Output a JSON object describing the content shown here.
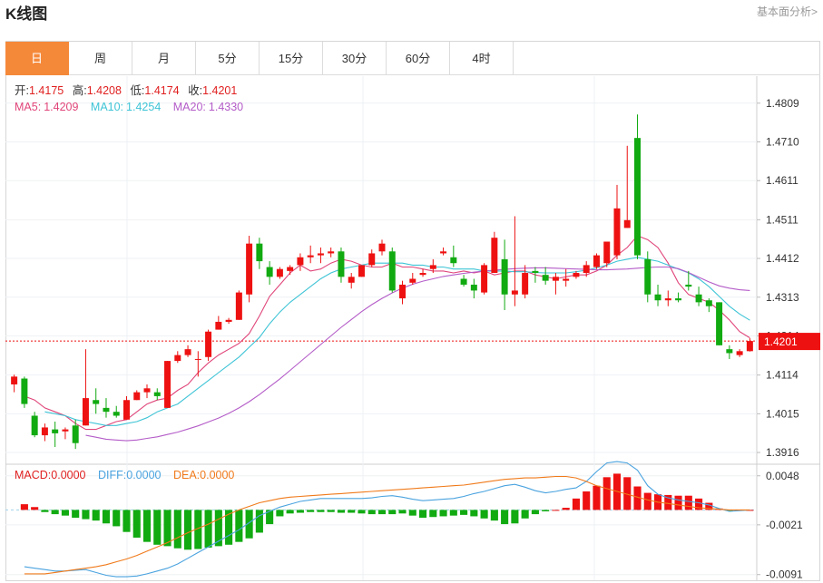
{
  "header": {
    "title": "K线图",
    "link": "基本面分析>"
  },
  "tabs": [
    {
      "label": "日",
      "active": true
    },
    {
      "label": "周",
      "active": false
    },
    {
      "label": "月",
      "active": false
    },
    {
      "label": "5分",
      "active": false
    },
    {
      "label": "15分",
      "active": false
    },
    {
      "label": "30分",
      "active": false
    },
    {
      "label": "60分",
      "active": false
    },
    {
      "label": "4时",
      "active": false
    }
  ],
  "ohlc_legend": {
    "open_label": "开:",
    "open": "1.4175",
    "high_label": "高:",
    "high": "1.4208",
    "low_label": "低:",
    "low": "1.4174",
    "close_label": "收:",
    "close": "1.4201"
  },
  "ma_legend": {
    "ma5_label": "MA5:",
    "ma5": "1.4209",
    "ma10_label": "MA10:",
    "ma10": "1.4254",
    "ma20_label": "MA20:",
    "ma20": "1.4330"
  },
  "macd_legend": {
    "macd_label": "MACD:",
    "macd": "0.0000",
    "diff_label": "DIFF:",
    "diff": "0.0000",
    "dea_label": "DEA:",
    "dea": "0.0000"
  },
  "colors": {
    "up": "#ee1111",
    "down": "#11aa11",
    "ma5": "#e0457a",
    "ma10": "#3ec4d6",
    "ma20": "#b45cc8",
    "diff": "#4aa3df",
    "dea": "#f07a1a",
    "accent": "#f5893a"
  },
  "chart_data": [
    {
      "type": "candlestick",
      "y_ticks": [
        "1.4809",
        "1.4710",
        "1.4611",
        "1.4511",
        "1.4412",
        "1.4313",
        "1.4214",
        "1.4114",
        "1.4015",
        "1.3916"
      ],
      "ylim": [
        1.3886,
        1.4878
      ],
      "current_price": "1.4201",
      "candles": [
        [
          1.409,
          1.4115,
          1.407,
          1.411
        ],
        [
          1.4105,
          1.411,
          1.403,
          1.404
        ],
        [
          1.401,
          1.402,
          1.3955,
          1.396
        ],
        [
          1.396,
          1.399,
          1.3945,
          1.398
        ],
        [
          1.3975,
          1.3995,
          1.393,
          1.3965
        ],
        [
          1.397,
          1.398,
          1.395,
          1.3975
        ],
        [
          1.3985,
          1.4,
          1.3925,
          1.394
        ],
        [
          1.3985,
          1.418,
          1.3985,
          1.4055
        ],
        [
          1.405,
          1.408,
          1.4015,
          1.404
        ],
        [
          1.403,
          1.4055,
          1.4005,
          1.402
        ],
        [
          1.402,
          1.4035,
          1.4005,
          1.401
        ],
        [
          1.4,
          1.406,
          1.4,
          1.405
        ],
        [
          1.405,
          1.4075,
          1.405,
          1.407
        ],
        [
          1.407,
          1.409,
          1.4055,
          1.408
        ],
        [
          1.407,
          1.408,
          1.405,
          1.406
        ],
        [
          1.403,
          1.415,
          1.403,
          1.415
        ],
        [
          1.415,
          1.4175,
          1.4145,
          1.4165
        ],
        [
          1.4165,
          1.419,
          1.416,
          1.418
        ],
        [
          1.4155,
          1.4175,
          1.411,
          1.4155
        ],
        [
          1.416,
          1.423,
          1.415,
          1.4225
        ],
        [
          1.423,
          1.4265,
          1.423,
          1.425
        ],
        [
          1.425,
          1.426,
          1.4245,
          1.4255
        ],
        [
          1.4255,
          1.433,
          1.4255,
          1.4325
        ],
        [
          1.432,
          1.447,
          1.43,
          1.445
        ],
        [
          1.445,
          1.4465,
          1.4385,
          1.4405
        ],
        [
          1.439,
          1.4405,
          1.4345,
          1.4365
        ],
        [
          1.4365,
          1.439,
          1.436,
          1.4385
        ],
        [
          1.438,
          1.4395,
          1.437,
          1.439
        ],
        [
          1.4395,
          1.4425,
          1.438,
          1.4415
        ],
        [
          1.4415,
          1.4445,
          1.44,
          1.442
        ],
        [
          1.442,
          1.444,
          1.44,
          1.4425
        ],
        [
          1.4425,
          1.444,
          1.4415,
          1.443
        ],
        [
          1.443,
          1.444,
          1.435,
          1.4365
        ],
        [
          1.435,
          1.4375,
          1.4335,
          1.4365
        ],
        [
          1.4365,
          1.4395,
          1.4365,
          1.4395
        ],
        [
          1.4395,
          1.4435,
          1.439,
          1.4425
        ],
        [
          1.443,
          1.446,
          1.442,
          1.445
        ],
        [
          1.443,
          1.444,
          1.4325,
          1.433
        ],
        [
          1.431,
          1.4355,
          1.4295,
          1.4345
        ],
        [
          1.435,
          1.4375,
          1.4345,
          1.436
        ],
        [
          1.437,
          1.4385,
          1.4365,
          1.4375
        ],
        [
          1.4385,
          1.441,
          1.4375,
          1.4395
        ],
        [
          1.4425,
          1.444,
          1.442,
          1.443
        ],
        [
          1.4415,
          1.4445,
          1.439,
          1.44
        ],
        [
          1.436,
          1.437,
          1.434,
          1.4345
        ],
        [
          1.4345,
          1.436,
          1.431,
          1.433
        ],
        [
          1.4325,
          1.44,
          1.432,
          1.4395
        ],
        [
          1.4375,
          1.448,
          1.4375,
          1.4465
        ],
        [
          1.441,
          1.446,
          1.428,
          1.432
        ],
        [
          1.432,
          1.452,
          1.429,
          1.433
        ],
        [
          1.432,
          1.4395,
          1.431,
          1.4375
        ],
        [
          1.438,
          1.439,
          1.435,
          1.4375
        ],
        [
          1.437,
          1.439,
          1.4345,
          1.4355
        ],
        [
          1.4355,
          1.4375,
          1.432,
          1.4365
        ],
        [
          1.4355,
          1.4385,
          1.434,
          1.436
        ],
        [
          1.4365,
          1.438,
          1.436,
          1.4375
        ],
        [
          1.4375,
          1.4405,
          1.4365,
          1.4395
        ],
        [
          1.439,
          1.4425,
          1.4385,
          1.442
        ],
        [
          1.44,
          1.4455,
          1.439,
          1.4455
        ],
        [
          1.442,
          1.46,
          1.441,
          1.454
        ],
        [
          1.449,
          1.47,
          1.449,
          1.451
        ],
        [
          1.472,
          1.478,
          1.441,
          1.442
        ],
        [
          1.441,
          1.443,
          1.43,
          1.432
        ],
        [
          1.432,
          1.4345,
          1.429,
          1.4305
        ],
        [
          1.4305,
          1.433,
          1.429,
          1.431
        ],
        [
          1.431,
          1.4325,
          1.43,
          1.4305
        ],
        [
          1.4345,
          1.438,
          1.433,
          1.434
        ],
        [
          1.432,
          1.434,
          1.429,
          1.43
        ],
        [
          1.4305,
          1.431,
          1.4275,
          1.429
        ],
        [
          1.43,
          1.43,
          1.419,
          1.419
        ],
        [
          1.418,
          1.419,
          1.4155,
          1.417
        ],
        [
          1.4165,
          1.418,
          1.416,
          1.4175
        ],
        [
          1.4175,
          1.4208,
          1.4174,
          1.4201
        ]
      ],
      "ma5": [
        1.406,
        1.405,
        1.403,
        1.402,
        1.401,
        1.399,
        1.3975,
        1.3975,
        1.3985,
        1.3995,
        1.4,
        1.402,
        1.404,
        1.405,
        1.4055,
        1.4075,
        1.409,
        1.412,
        1.4145,
        1.4165,
        1.418,
        1.4195,
        1.422,
        1.4265,
        1.4315,
        1.4345,
        1.4375,
        1.4395,
        1.438,
        1.4385,
        1.44,
        1.441,
        1.4405,
        1.4395,
        1.439,
        1.439,
        1.44,
        1.439,
        1.439,
        1.4385,
        1.438,
        1.438,
        1.4375,
        1.438,
        1.4375,
        1.438,
        1.437,
        1.4375,
        1.438,
        1.438,
        1.437,
        1.4365,
        1.436,
        1.4365,
        1.437,
        1.437,
        1.438,
        1.4395,
        1.442,
        1.444,
        1.447,
        1.446,
        1.444,
        1.44,
        1.435,
        1.432,
        1.431,
        1.43,
        1.428,
        1.4255,
        1.4225,
        1.4209
      ],
      "ma10": [
        1.402,
        1.4015,
        1.401,
        1.4,
        1.3995,
        1.399,
        1.3985,
        1.3985,
        1.399,
        1.3995,
        1.4005,
        1.402,
        1.403,
        1.404,
        1.406,
        1.408,
        1.41,
        1.412,
        1.414,
        1.416,
        1.4185,
        1.421,
        1.4245,
        1.4275,
        1.43,
        1.432,
        1.434,
        1.436,
        1.4375,
        1.4385,
        1.439,
        1.4395,
        1.44,
        1.44,
        1.44,
        1.44,
        1.4395,
        1.4395,
        1.439,
        1.439,
        1.4385,
        1.4385,
        1.4385,
        1.438,
        1.438,
        1.438,
        1.4378,
        1.4378,
        1.4376,
        1.4375,
        1.4375,
        1.4375,
        1.4378,
        1.4382,
        1.4388,
        1.4395,
        1.4405,
        1.441,
        1.4415,
        1.441,
        1.4405,
        1.4395,
        1.4385,
        1.4375,
        1.436,
        1.434,
        1.4315,
        1.429,
        1.427,
        1.4254
      ],
      "ma20": [
        1.396,
        1.3955,
        1.395,
        1.3948,
        1.3946,
        1.3948,
        1.3952,
        1.3956,
        1.3962,
        1.3968,
        1.3976,
        1.3984,
        1.3994,
        1.4004,
        1.4016,
        1.403,
        1.4046,
        1.4064,
        1.4084,
        1.4104,
        1.4126,
        1.4148,
        1.417,
        1.4192,
        1.4214,
        1.4236,
        1.4256,
        1.4276,
        1.4294,
        1.431,
        1.4324,
        1.4336,
        1.4346,
        1.4354,
        1.436,
        1.4366,
        1.437,
        1.4374,
        1.4377,
        1.438,
        1.4382,
        1.4384,
        1.4386,
        1.4387,
        1.4388,
        1.4388,
        1.4387,
        1.4386,
        1.4385,
        1.4384,
        1.4383,
        1.4383,
        1.4384,
        1.4385,
        1.4387,
        1.4389,
        1.439,
        1.439,
        1.4386,
        1.4376,
        1.4364,
        1.4352,
        1.4342,
        1.4336,
        1.4332,
        1.433
      ]
    },
    {
      "type": "macd",
      "y_ticks": [
        "0.0048",
        "-0.0021",
        "-0.0091"
      ],
      "ylim": [
        -0.0099,
        0.0063
      ],
      "macd": [
        0.0008,
        0.0004,
        -0.0003,
        -0.0006,
        -0.0008,
        -0.0011,
        -0.0013,
        -0.0015,
        -0.0019,
        -0.0023,
        -0.0031,
        -0.0039,
        -0.0045,
        -0.0049,
        -0.0051,
        -0.0054,
        -0.0056,
        -0.0055,
        -0.0053,
        -0.0051,
        -0.0049,
        -0.0045,
        -0.004,
        -0.0032,
        -0.002,
        -0.0009,
        -0.0005,
        -0.0004,
        -0.0003,
        -0.0003,
        -0.0003,
        -0.0004,
        -0.0004,
        -0.0005,
        -0.0006,
        -0.0006,
        -0.0006,
        -0.0005,
        -0.0008,
        -0.0011,
        -0.001,
        -0.0009,
        -0.0008,
        -0.0007,
        -0.0009,
        -0.0012,
        -0.0015,
        -0.002,
        -0.0019,
        -0.0012,
        -0.0006,
        -0.0002,
        0.0,
        0.0003,
        0.0016,
        0.0026,
        0.0034,
        0.0046,
        0.0051,
        0.0046,
        0.0033,
        0.0024,
        0.0022,
        0.0021,
        0.002,
        0.002,
        0.0016,
        0.001,
        0.0002,
        -0.0001,
        -0.0001,
        0.0
      ],
      "diff": [
        -0.008,
        -0.0082,
        -0.0084,
        -0.0086,
        -0.0086,
        -0.0085,
        -0.0084,
        -0.0088,
        -0.0092,
        -0.0094,
        -0.0094,
        -0.0093,
        -0.009,
        -0.0086,
        -0.0082,
        -0.0076,
        -0.0068,
        -0.006,
        -0.0052,
        -0.0044,
        -0.0036,
        -0.0028,
        -0.0018,
        -0.0008,
        -0.0002,
        0.0004,
        0.0008,
        0.0012,
        0.0014,
        0.0016,
        0.0016,
        0.0016,
        0.0016,
        0.0016,
        0.0017,
        0.0019,
        0.002,
        0.0018,
        0.0015,
        0.0013,
        0.0014,
        0.0015,
        0.0016,
        0.0019,
        0.0023,
        0.0026,
        0.003,
        0.0034,
        0.0036,
        0.0032,
        0.0027,
        0.0024,
        0.0026,
        0.0029,
        0.0031,
        0.004,
        0.0054,
        0.0066,
        0.0068,
        0.0066,
        0.0056,
        0.0034,
        0.0022,
        0.0017,
        0.0014,
        0.0012,
        0.001,
        0.0007,
        0.0002,
        -0.0002,
        -0.0001,
        0.0
      ],
      "dea": [
        -0.009,
        -0.009,
        -0.009,
        -0.0088,
        -0.0086,
        -0.0084,
        -0.0082,
        -0.008,
        -0.0077,
        -0.0073,
        -0.0069,
        -0.0064,
        -0.0058,
        -0.0052,
        -0.0046,
        -0.0039,
        -0.0032,
        -0.0026,
        -0.002,
        -0.0013,
        -0.0006,
        0.0,
        0.0005,
        0.001,
        0.0013,
        0.0016,
        0.0018,
        0.0019,
        0.002,
        0.0021,
        0.0022,
        0.0023,
        0.0024,
        0.0025,
        0.0026,
        0.0027,
        0.0028,
        0.0029,
        0.003,
        0.0031,
        0.0032,
        0.0033,
        0.0034,
        0.0035,
        0.0037,
        0.0039,
        0.0041,
        0.0043,
        0.0044,
        0.0045,
        0.0045,
        0.0046,
        0.0047,
        0.0047,
        0.0045,
        0.004,
        0.0034,
        0.003,
        0.0026,
        0.0022,
        0.0018,
        0.0014,
        0.0011,
        0.0009,
        0.0007,
        0.0005,
        0.0003,
        0.0002,
        0.0001,
        0.0,
        0.0,
        0.0
      ]
    }
  ]
}
